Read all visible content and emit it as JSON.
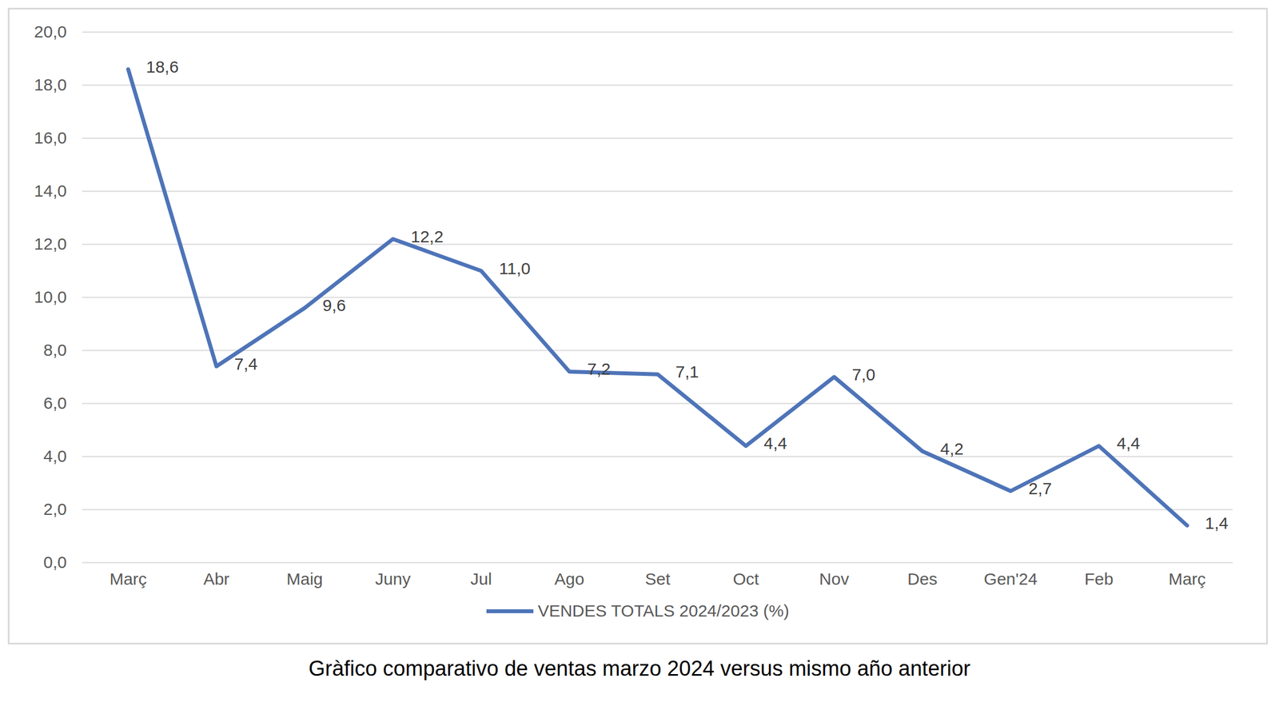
{
  "chart_data": {
    "type": "line",
    "caption": "Gràfico comparativo de ventas marzo 2024 versus mismo año anterior",
    "categories": [
      "Març",
      "Abr",
      "Maig",
      "Juny",
      "Jul",
      "Ago",
      "Set",
      "Oct",
      "Nov",
      "Des",
      "Gen'24",
      "Feb",
      "Març"
    ],
    "series": [
      {
        "name": "VENDES TOTALS 2024/2023 (%)",
        "color": "#4e74b8",
        "values": [
          18.6,
          7.4,
          9.6,
          12.2,
          11.0,
          7.2,
          7.1,
          4.4,
          7.0,
          4.2,
          2.7,
          4.4,
          1.4
        ],
        "value_labels": [
          "18,6",
          "7,4",
          "9,6",
          "12,2",
          "11,0",
          "7,2",
          "7,1",
          "4,4",
          "7,0",
          "4,2",
          "2,7",
          "4,4",
          "1,4"
        ]
      }
    ],
    "ylim": [
      0,
      20
    ],
    "yticks": [
      {
        "value": 0,
        "label": "0,0"
      },
      {
        "value": 2,
        "label": "2,0"
      },
      {
        "value": 4,
        "label": "4,0"
      },
      {
        "value": 6,
        "label": "6,0"
      },
      {
        "value": 8,
        "label": "8,0"
      },
      {
        "value": 10,
        "label": "10,0"
      },
      {
        "value": 12,
        "label": "12,0"
      },
      {
        "value": 14,
        "label": "14,0"
      },
      {
        "value": 16,
        "label": "16,0"
      },
      {
        "value": 18,
        "label": "18,0"
      },
      {
        "value": 20,
        "label": "20,0"
      }
    ],
    "grid": true,
    "data_labels": true,
    "legend": "bottom"
  }
}
